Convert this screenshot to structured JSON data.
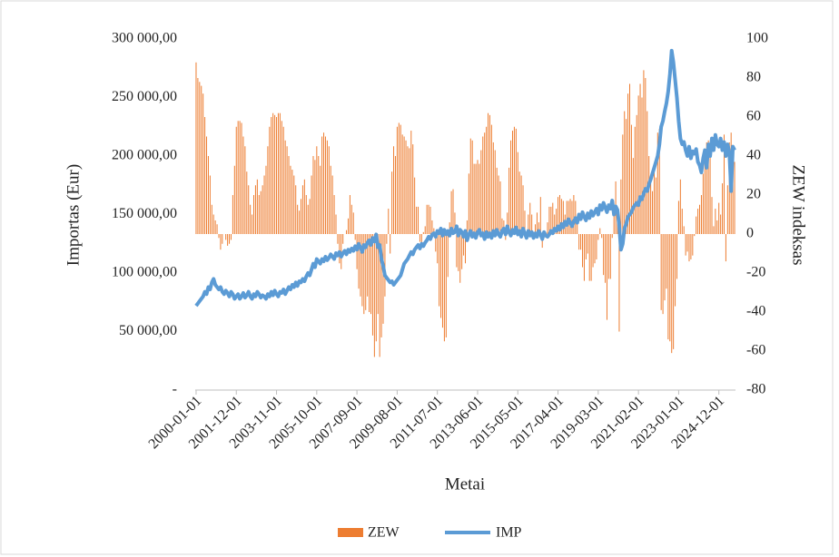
{
  "chart_data": {
    "type": "bar-line",
    "xlabel": "Metai",
    "ylabel": "Importas (Eur)",
    "y2label": "ZEW indeksas",
    "legend": "bottom",
    "grid": false,
    "ylim": [
      0,
      300000
    ],
    "yticks": [
      {
        "value": 0,
        "label": "-"
      },
      {
        "value": 50000,
        "label": "50 000,00"
      },
      {
        "value": 100000,
        "label": "100 000,00"
      },
      {
        "value": 150000,
        "label": "150 000,00"
      },
      {
        "value": 200000,
        "label": "200 000,00"
      },
      {
        "value": 250000,
        "label": "250 000,00"
      },
      {
        "value": 300000,
        "label": "300 000,00"
      }
    ],
    "y2lim": [
      -80,
      100
    ],
    "y2ticks": [
      -80,
      -60,
      -40,
      -20,
      0,
      20,
      40,
      60,
      80,
      100
    ],
    "categories": [
      "2000-01-01",
      null,
      null,
      null,
      null,
      null,
      null,
      null,
      null,
      null,
      null,
      null,
      null,
      null,
      null,
      null,
      null,
      null,
      null,
      null,
      null,
      null,
      null,
      "2001-12-01",
      null,
      null,
      null,
      null,
      null,
      null,
      null,
      null,
      null,
      null,
      null,
      null,
      null,
      null,
      null,
      null,
      null,
      null,
      null,
      null,
      null,
      null,
      "2003-11-01",
      null,
      null,
      null,
      null,
      null,
      null,
      null,
      null,
      null,
      null,
      null,
      null,
      null,
      null,
      null,
      null,
      null,
      null,
      null,
      null,
      null,
      null,
      "2005-10-01",
      null,
      null,
      null,
      null,
      null,
      null,
      null,
      null,
      null,
      null,
      null,
      null,
      null,
      null,
      null,
      null,
      null,
      null,
      null,
      null,
      null,
      null,
      "2007-09-01",
      null,
      null,
      null,
      null,
      null,
      null,
      null,
      null,
      null,
      null,
      null,
      null,
      null,
      null,
      null,
      null,
      null,
      null,
      null,
      null,
      null,
      null,
      "2009-08-01",
      null,
      null,
      null,
      null,
      null,
      null,
      null,
      null,
      null,
      null,
      null,
      null,
      null,
      null,
      null,
      null,
      null,
      null,
      null,
      null,
      null,
      null,
      "2011-07-01",
      null,
      null,
      null,
      null,
      null,
      null,
      null,
      null,
      null,
      null,
      null,
      null,
      null,
      null,
      null,
      null,
      null,
      null,
      null,
      null,
      null,
      null,
      "2013-06-01",
      null,
      null,
      null,
      null,
      null,
      null,
      null,
      null,
      null,
      null,
      null,
      null,
      null,
      null,
      null,
      null,
      null,
      null,
      null,
      null,
      null,
      null,
      "2015-05-01",
      null,
      null,
      null,
      null,
      null,
      null,
      null,
      null,
      null,
      null,
      null,
      null,
      null,
      null,
      null,
      null,
      null,
      null,
      null,
      null,
      null,
      null,
      "2017-04-01",
      null,
      null,
      null,
      null,
      null,
      null,
      null,
      null,
      null,
      null,
      null,
      null,
      null,
      null,
      null,
      null,
      null,
      null,
      null,
      null,
      null,
      null,
      "2019-03-01",
      null,
      null,
      null,
      null,
      null,
      null,
      null,
      null,
      null,
      null,
      null,
      null,
      null,
      null,
      null,
      null,
      null,
      null,
      null,
      null,
      null,
      null,
      "2021-02-01",
      null,
      null,
      null,
      null,
      null,
      null,
      null,
      null,
      null,
      null,
      null,
      null,
      null,
      null,
      null,
      null,
      null,
      null,
      null,
      null,
      null,
      null,
      "2023-01-01",
      null,
      null,
      null,
      null,
      null,
      null,
      null,
      null,
      null,
      null,
      null,
      null,
      null,
      null,
      null,
      null,
      null,
      null,
      null,
      null,
      null,
      null,
      "2024-12-01",
      null,
      null,
      null,
      null,
      null,
      null,
      null,
      null,
      null
    ],
    "series": [
      {
        "name": "ZEW",
        "type": "bar",
        "axis": "y2",
        "color": "#ed7d31",
        "values": [
          88,
          80,
          78,
          76,
          72,
          60,
          50,
          40,
          30,
          15,
          10,
          7,
          5,
          -2,
          -8,
          -5,
          0,
          -3,
          -6,
          -5,
          -3,
          20,
          35,
          55,
          58,
          58,
          57,
          50,
          45,
          32,
          25,
          15,
          10,
          20,
          25,
          28,
          20,
          22,
          25,
          30,
          35,
          45,
          55,
          60,
          62,
          61,
          60,
          62,
          62,
          58,
          55,
          48,
          45,
          40,
          35,
          33,
          30,
          25,
          15,
          12,
          18,
          25,
          28,
          20,
          15,
          18,
          30,
          40,
          38,
          45,
          40,
          35,
          50,
          52,
          50,
          48,
          45,
          35,
          30,
          20,
          10,
          -5,
          -15,
          -18,
          -5,
          0,
          2,
          8,
          20,
          15,
          11,
          -3,
          -18,
          -28,
          -32,
          -37,
          -41,
          -39,
          -32,
          -40,
          -41,
          -52,
          -63,
          -55,
          -41,
          -63,
          -53,
          -46,
          -32,
          -5,
          13,
          -10,
          32,
          45,
          40,
          55,
          57,
          56,
          51,
          50,
          48,
          45,
          44,
          53,
          46,
          29,
          14,
          14,
          -4,
          -7,
          1,
          4,
          15,
          15,
          14,
          7,
          3,
          -9,
          -15,
          -37,
          -43,
          -48,
          -55,
          -53,
          -22,
          6,
          22,
          23,
          11,
          -17,
          -19,
          -25,
          -18,
          -11,
          -15,
          7,
          31,
          49,
          48,
          36,
          36,
          38,
          36,
          43,
          50,
          52,
          55,
          62,
          61,
          56,
          47,
          43,
          34,
          30,
          27,
          8,
          7,
          -3,
          11,
          34,
          48,
          53,
          55,
          54,
          42,
          32,
          30,
          25,
          12,
          1,
          10,
          16,
          10,
          1,
          5,
          11,
          6,
          19,
          -7,
          0,
          1,
          6,
          14,
          14,
          16,
          10,
          13,
          19,
          20,
          18,
          17,
          10,
          17,
          17,
          18,
          17,
          20,
          17,
          5,
          -8,
          -8,
          -17,
          -24,
          -13,
          -10,
          -24,
          -24,
          -17,
          -15,
          -13,
          -3,
          3,
          -2,
          -21,
          -25,
          -44,
          -23,
          -23,
          -2,
          11,
          27,
          8,
          -50,
          28,
          51,
          63,
          59,
          72,
          77,
          56,
          39,
          55,
          61,
          71,
          77,
          70,
          84,
          80,
          63,
          40,
          26,
          22,
          32,
          29,
          52,
          54,
          -39,
          -41,
          -34,
          -28,
          -54,
          -55,
          -61,
          -59,
          -37,
          -23,
          17,
          28,
          13,
          4,
          -11,
          -9,
          -14,
          -13,
          -11,
          -1,
          9,
          13,
          15,
          20,
          31,
          42,
          47,
          48,
          42,
          19,
          4,
          13,
          7,
          16,
          10,
          26,
          51,
          -14,
          25,
          47,
          52,
          35,
          37
        ]
      },
      {
        "name": "IMP",
        "type": "line",
        "color": "#5b9bd5",
        "values": [
          72000,
          74000,
          76000,
          78000,
          80000,
          84000,
          82000,
          88000,
          86000,
          92000,
          95000,
          90000,
          88000,
          86000,
          88000,
          84000,
          82000,
          85000,
          83000,
          80000,
          84000,
          82000,
          78000,
          80000,
          82000,
          78000,
          80000,
          83000,
          79000,
          81000,
          84000,
          80000,
          78000,
          82000,
          80000,
          84000,
          82000,
          79000,
          81000,
          80000,
          78000,
          82000,
          80000,
          84000,
          81000,
          85000,
          82000,
          80000,
          84000,
          83000,
          86000,
          82000,
          85000,
          88000,
          86000,
          90000,
          88000,
          92000,
          89000,
          93000,
          92000,
          95000,
          93000,
          97000,
          100000,
          98000,
          103000,
          108000,
          105000,
          112000,
          110000,
          108000,
          112000,
          110000,
          114000,
          111000,
          113000,
          116000,
          114000,
          112000,
          117000,
          115000,
          118000,
          114000,
          117000,
          119000,
          116000,
          120000,
          118000,
          121000,
          119000,
          123000,
          120000,
          125000,
          122000,
          118000,
          124000,
          122000,
          126000,
          128000,
          124000,
          130000,
          127000,
          133000,
          122000,
          124000,
          112000,
          106000,
          98000,
          96000,
          94000,
          92000,
          93000,
          90000,
          92000,
          94000,
          96000,
          98000,
          103000,
          108000,
          110000,
          112000,
          115000,
          118000,
          116000,
          120000,
          122000,
          124000,
          121000,
          125000,
          123000,
          126000,
          128000,
          131000,
          129000,
          133000,
          134000,
          131000,
          136000,
          134000,
          138000,
          132000,
          137000,
          133000,
          136000,
          132000,
          138000,
          134000,
          135000,
          140000,
          132000,
          137000,
          135000,
          131000,
          136000,
          128000,
          133000,
          136000,
          131000,
          134000,
          130000,
          135000,
          137000,
          132000,
          134000,
          129000,
          135000,
          131000,
          134000,
          130000,
          136000,
          132000,
          137000,
          133000,
          131000,
          136000,
          138000,
          133000,
          140000,
          135000,
          132000,
          137000,
          134000,
          139000,
          133000,
          136000,
          131000,
          138000,
          134000,
          130000,
          136000,
          132000,
          135000,
          130000,
          134000,
          131000,
          136000,
          133000,
          129000,
          135000,
          132000,
          131000,
          133000,
          136000,
          134000,
          138000,
          136000,
          140000,
          137000,
          142000,
          139000,
          144000,
          141000,
          146000,
          143000,
          140000,
          144000,
          147000,
          143000,
          150000,
          146000,
          152000,
          148000,
          145000,
          151000,
          147000,
          153000,
          149000,
          152000,
          155000,
          150000,
          158000,
          154000,
          160000,
          156000,
          152000,
          158000,
          155000,
          162000,
          150000,
          157000,
          154000,
          140000,
          120000,
          125000,
          138000,
          142000,
          148000,
          150000,
          152000,
          156000,
          158000,
          160000,
          158000,
          165000,
          163000,
          168000,
          172000,
          170000,
          176000,
          180000,
          185000,
          190000,
          195000,
          200000,
          210000,
          225000,
          230000,
          238000,
          245000,
          255000,
          270000,
          290000,
          280000,
          265000,
          250000,
          230000,
          215000,
          210000,
          212000,
          205000,
          200000,
          208000,
          198000,
          204000,
          202000,
          206000,
          195000,
          192000,
          186000,
          198000,
          205000,
          190000,
          210000,
          200000,
          215000,
          205000,
          218000,
          210000,
          208000,
          215000,
          205000,
          212000,
          200000,
          210000,
          203000,
          170000,
          208000,
          205000
        ]
      }
    ]
  }
}
